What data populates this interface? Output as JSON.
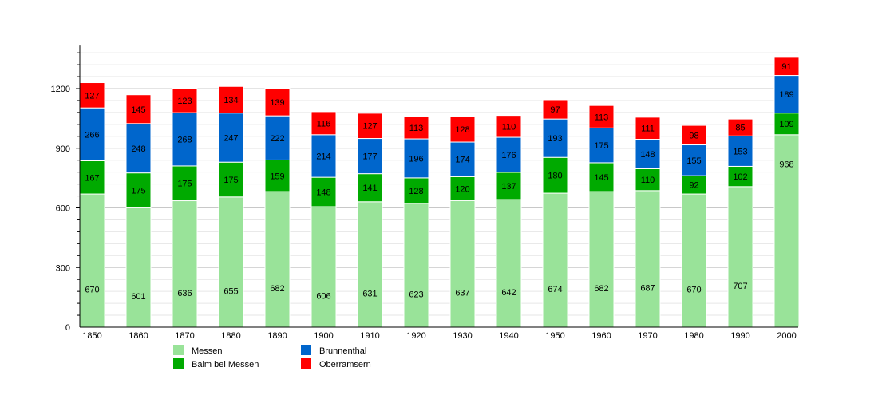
{
  "chart_data": {
    "type": "bar",
    "stacked": true,
    "title": "",
    "xlabel": "",
    "ylabel": "",
    "ylim": [
      0,
      1400
    ],
    "yticks": [
      0,
      300,
      600,
      900,
      1200
    ],
    "grid": true,
    "legend_position": "bottom",
    "categories": [
      "1850",
      "1860",
      "1870",
      "1880",
      "1890",
      "1900",
      "1910",
      "1920",
      "1930",
      "1940",
      "1950",
      "1960",
      "1970",
      "1980",
      "1990",
      "2000"
    ],
    "series": [
      {
        "name": "Messen",
        "color": "#99e399",
        "values": [
          670,
          601,
          636,
          655,
          682,
          606,
          631,
          623,
          637,
          642,
          674,
          682,
          687,
          670,
          707,
          968
        ]
      },
      {
        "name": "Balm bei Messen",
        "color": "#00aa00",
        "values": [
          167,
          175,
          175,
          175,
          159,
          148,
          141,
          128,
          120,
          137,
          180,
          145,
          110,
          92,
          102,
          109
        ]
      },
      {
        "name": "Brunnenthal",
        "color": "#0066cc",
        "values": [
          266,
          248,
          268,
          247,
          222,
          214,
          177,
          196,
          174,
          176,
          193,
          175,
          148,
          155,
          153,
          189
        ]
      },
      {
        "name": "Oberramsern",
        "color": "#ff0000",
        "values": [
          127,
          145,
          123,
          134,
          139,
          116,
          127,
          113,
          128,
          110,
          97,
          113,
          111,
          98,
          85,
          91
        ]
      }
    ]
  }
}
